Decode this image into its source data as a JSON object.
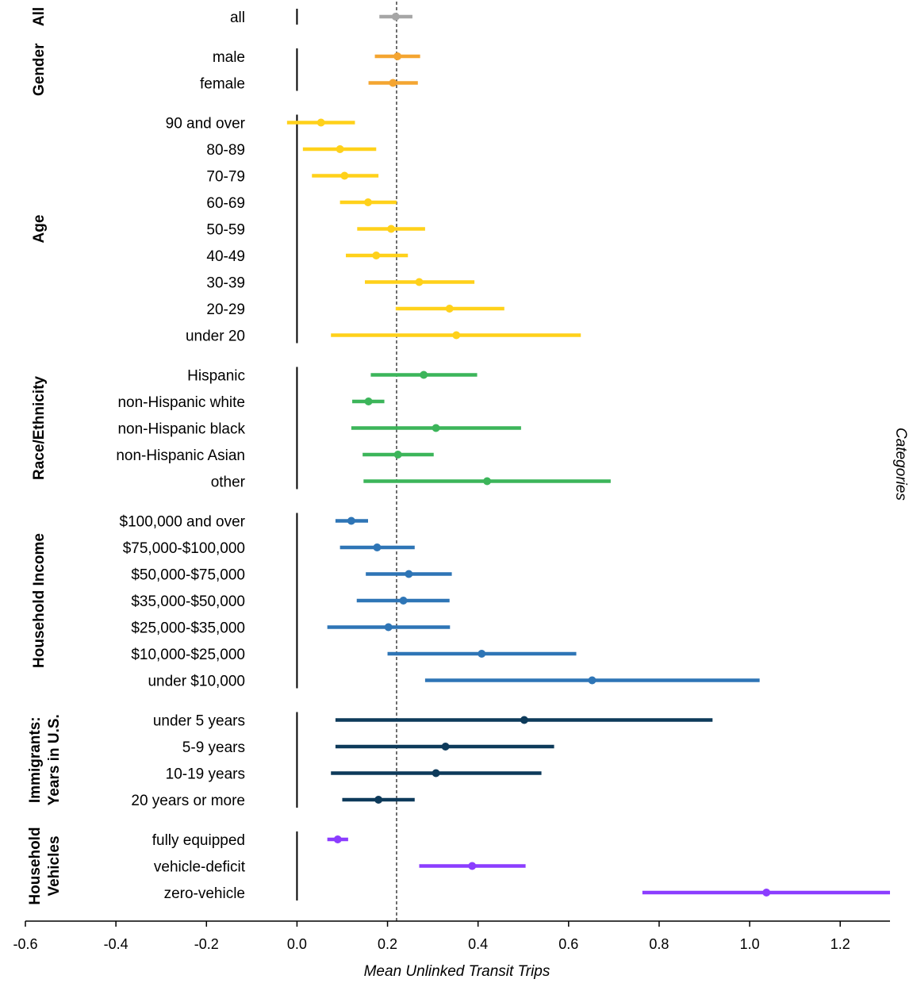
{
  "chart_data": {
    "type": "forest",
    "xlabel": "Mean Unlinked Transit Trips",
    "right_label": "Categories",
    "xlim": [
      -0.6,
      1.31
    ],
    "xticks": [
      -0.6,
      -0.4,
      -0.2,
      0.0,
      0.2,
      0.4,
      0.6,
      0.8,
      1.0,
      1.2
    ],
    "xtick_labels": [
      "-0.6",
      "-0.4",
      "-0.2",
      "0.0",
      "0.2",
      "0.4",
      "0.6",
      "0.8",
      "1.0",
      "1.2"
    ],
    "reference_line_x": 0.22,
    "grid": false,
    "groups": [
      {
        "name": "All",
        "color": "#a6a6a6",
        "items": [
          {
            "label": "all",
            "mean": 0.218,
            "lo": 0.182,
            "hi": 0.255
          }
        ]
      },
      {
        "name": "Gender",
        "color": "#f4a531",
        "items": [
          {
            "label": "male",
            "mean": 0.222,
            "lo": 0.172,
            "hi": 0.272
          },
          {
            "label": "female",
            "mean": 0.212,
            "lo": 0.158,
            "hi": 0.267
          }
        ]
      },
      {
        "name": "Age",
        "color": "#ffd11a",
        "items": [
          {
            "label": "90 and over",
            "mean": 0.053,
            "lo": -0.022,
            "hi": 0.128
          },
          {
            "label": "80-89",
            "mean": 0.095,
            "lo": 0.013,
            "hi": 0.175
          },
          {
            "label": "70-79",
            "mean": 0.105,
            "lo": 0.033,
            "hi": 0.18
          },
          {
            "label": "60-69",
            "mean": 0.157,
            "lo": 0.095,
            "hi": 0.22
          },
          {
            "label": "50-59",
            "mean": 0.208,
            "lo": 0.133,
            "hi": 0.283
          },
          {
            "label": "40-49",
            "mean": 0.175,
            "lo": 0.108,
            "hi": 0.245
          },
          {
            "label": "30-39",
            "mean": 0.27,
            "lo": 0.15,
            "hi": 0.392
          },
          {
            "label": "20-29",
            "mean": 0.337,
            "lo": 0.218,
            "hi": 0.458
          },
          {
            "label": "under 20",
            "mean": 0.352,
            "lo": 0.075,
            "hi": 0.627
          }
        ]
      },
      {
        "name": "Race/Ethnicity",
        "color": "#3cb55a",
        "items": [
          {
            "label": "Hispanic",
            "mean": 0.28,
            "lo": 0.163,
            "hi": 0.398
          },
          {
            "label": "non-Hispanic white",
            "mean": 0.158,
            "lo": 0.122,
            "hi": 0.193
          },
          {
            "label": "non-Hispanic black",
            "mean": 0.307,
            "lo": 0.12,
            "hi": 0.495
          },
          {
            "label": "non-Hispanic Asian",
            "mean": 0.223,
            "lo": 0.145,
            "hi": 0.302
          },
          {
            "label": "other",
            "mean": 0.42,
            "lo": 0.147,
            "hi": 0.693
          }
        ]
      },
      {
        "name": "Household Income",
        "color": "#2e75b6",
        "items": [
          {
            "label": "$100,000 and over",
            "mean": 0.12,
            "lo": 0.085,
            "hi": 0.157
          },
          {
            "label": "$75,000-$100,000",
            "mean": 0.177,
            "lo": 0.095,
            "hi": 0.26
          },
          {
            "label": "$50,000-$75,000",
            "mean": 0.247,
            "lo": 0.152,
            "hi": 0.342
          },
          {
            "label": "$35,000-$50,000",
            "mean": 0.235,
            "lo": 0.132,
            "hi": 0.337
          },
          {
            "label": "$25,000-$35,000",
            "mean": 0.202,
            "lo": 0.067,
            "hi": 0.338
          },
          {
            "label": "$10,000-$25,000",
            "mean": 0.408,
            "lo": 0.2,
            "hi": 0.617
          },
          {
            "label": "under $10,000",
            "mean": 0.652,
            "lo": 0.283,
            "hi": 1.022
          }
        ]
      },
      {
        "name": "Immigrants: Years in U.S.",
        "lines": [
          "Immigrants:",
          "Years in U.S."
        ],
        "color": "#0d3a5a",
        "items": [
          {
            "label": "under 5 years",
            "mean": 0.502,
            "lo": 0.085,
            "hi": 0.918
          },
          {
            "label": "5-9 years",
            "mean": 0.328,
            "lo": 0.085,
            "hi": 0.568
          },
          {
            "label": "10-19 years",
            "mean": 0.307,
            "lo": 0.075,
            "hi": 0.54
          },
          {
            "label": "20 years or more",
            "mean": 0.18,
            "lo": 0.1,
            "hi": 0.26
          }
        ]
      },
      {
        "name": "Household Vehicles",
        "lines": [
          "Household",
          "Vehicles"
        ],
        "color": "#8b3dff",
        "items": [
          {
            "label": "fully equipped",
            "mean": 0.09,
            "lo": 0.067,
            "hi": 0.113
          },
          {
            "label": "vehicle-deficit",
            "mean": 0.387,
            "lo": 0.27,
            "hi": 0.505
          },
          {
            "label": "zero-vehicle",
            "mean": 1.037,
            "lo": 0.763,
            "hi": 1.31
          }
        ]
      }
    ]
  }
}
